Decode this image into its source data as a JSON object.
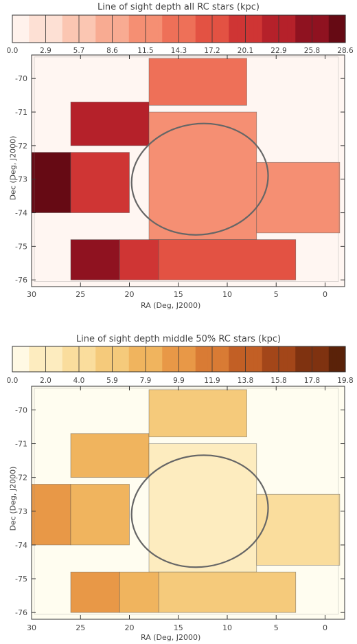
{
  "chart_data": [
    {
      "type": "heatmap",
      "title": "Line of sight depth all RC stars (kpc)",
      "colorbar": {
        "ticks": [
          "0.0",
          "2.9",
          "5.7",
          "8.6",
          "11.5",
          "14.3",
          "17.2",
          "20.1",
          "22.9",
          "25.8",
          "28.6"
        ],
        "range": [
          0.0,
          28.6
        ],
        "colors": [
          "#fff2ec",
          "#fde0d4",
          "#fbc6b2",
          "#f8ab92",
          "#f58f73",
          "#ee7058",
          "#e35243",
          "#cf3534",
          "#b5212a",
          "#8f1220",
          "#660a14"
        ]
      },
      "xlabel": "RA (Deg, J2000)",
      "ylabel": "Dec (Deg, J2000)",
      "xticks": [
        "30",
        "25",
        "20",
        "15",
        "10",
        "5",
        "0"
      ],
      "yticks": [
        "-70",
        "-71",
        "-72",
        "-73",
        "-74",
        "-75",
        "-76"
      ],
      "xlim": [
        30,
        -2
      ],
      "ylim": [
        -76.2,
        -69.3
      ],
      "regions": [
        {
          "ra": [
            26,
            18
          ],
          "dec": [
            -70.7,
            -72.0
          ],
          "value": 23.5
        },
        {
          "ra": [
            18,
            8
          ],
          "dec": [
            -69.4,
            -70.8
          ],
          "value": 15.0
        },
        {
          "ra": [
            30,
            26
          ],
          "dec": [
            -72.2,
            -74.0
          ],
          "value": 27.5
        },
        {
          "ra": [
            26,
            20
          ],
          "dec": [
            -72.2,
            -74.0
          ],
          "value": 20.0
        },
        {
          "ra": [
            18,
            7
          ],
          "dec": [
            -71.0,
            -74.8
          ],
          "value": 11.0
        },
        {
          "ra": [
            7,
            -1.5
          ],
          "dec": [
            -72.5,
            -74.6
          ],
          "value": 10.5
        },
        {
          "ra": [
            26,
            21
          ],
          "dec": [
            -74.8,
            -76.0
          ],
          "value": 26.5
        },
        {
          "ra": [
            21,
            17
          ],
          "dec": [
            -74.8,
            -76.0
          ],
          "value": 20.5
        },
        {
          "ra": [
            17,
            3
          ],
          "dec": [
            -74.8,
            -76.0
          ],
          "value": 16.0
        }
      ]
    },
    {
      "type": "heatmap",
      "title": "Line of sight depth middle 50% RC stars (kpc)",
      "colorbar": {
        "ticks": [
          "0.0",
          "2.0",
          "4.0",
          "5.9",
          "7.9",
          "9.9",
          "11.9",
          "13.8",
          "15.8",
          "17.8",
          "19.8"
        ],
        "range": [
          0.0,
          19.8
        ],
        "colors": [
          "#fff9e4",
          "#fdecbf",
          "#fadd9d",
          "#f5ca7b",
          "#f0b45e",
          "#e89847",
          "#d97b34",
          "#c25f25",
          "#a34619",
          "#7f3210",
          "#5a2209"
        ]
      },
      "xlabel": "RA (Deg, J2000)",
      "ylabel": "Dec (Deg, J2000)",
      "xticks": [
        "30",
        "25",
        "20",
        "15",
        "10",
        "5",
        "0"
      ],
      "yticks": [
        "-70",
        "-71",
        "-72",
        "-73",
        "-74",
        "-75",
        "-76"
      ],
      "xlim": [
        30,
        -2
      ],
      "ylim": [
        -76.2,
        -69.3
      ],
      "regions": [
        {
          "ra": [
            26,
            18
          ],
          "dec": [
            -70.7,
            -72.0
          ],
          "value": 8.0
        },
        {
          "ra": [
            18,
            8
          ],
          "dec": [
            -69.4,
            -70.8
          ],
          "value": 5.5
        },
        {
          "ra": [
            30,
            26
          ],
          "dec": [
            -72.2,
            -74.0
          ],
          "value": 9.0
        },
        {
          "ra": [
            26,
            20
          ],
          "dec": [
            -72.2,
            -74.0
          ],
          "value": 7.5
        },
        {
          "ra": [
            18,
            7
          ],
          "dec": [
            -71.0,
            -74.8
          ],
          "value": 2.6
        },
        {
          "ra": [
            7,
            -1.5
          ],
          "dec": [
            -72.5,
            -74.6
          ],
          "value": 3.6
        },
        {
          "ra": [
            26,
            21
          ],
          "dec": [
            -74.8,
            -76.0
          ],
          "value": 10.5
        },
        {
          "ra": [
            21,
            17
          ],
          "dec": [
            -74.8,
            -76.0
          ],
          "value": 8.0
        },
        {
          "ra": [
            17,
            3
          ],
          "dec": [
            -74.8,
            -76.0
          ],
          "value": 5.0
        }
      ]
    }
  ]
}
